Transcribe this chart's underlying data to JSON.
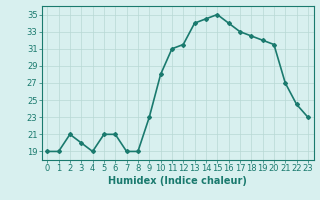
{
  "x": [
    0,
    1,
    2,
    3,
    4,
    5,
    6,
    7,
    8,
    9,
    10,
    11,
    12,
    13,
    14,
    15,
    16,
    17,
    18,
    19,
    20,
    21,
    22,
    23
  ],
  "y": [
    19,
    19,
    21,
    20,
    19,
    21,
    21,
    19,
    19,
    23,
    28,
    31,
    31.5,
    34,
    34.5,
    35,
    34,
    33,
    32.5,
    32,
    31.5,
    27,
    24.5,
    23
  ],
  "xlabel": "Humidex (Indice chaleur)",
  "ylabel": "",
  "xlim": [
    -0.5,
    23.5
  ],
  "ylim": [
    18,
    36
  ],
  "yticks": [
    19,
    21,
    23,
    25,
    27,
    29,
    31,
    33,
    35
  ],
  "xticks": [
    0,
    1,
    2,
    3,
    4,
    5,
    6,
    7,
    8,
    9,
    10,
    11,
    12,
    13,
    14,
    15,
    16,
    17,
    18,
    19,
    20,
    21,
    22,
    23
  ],
  "line_color": "#1a7a6e",
  "marker_color": "#1a7a6e",
  "bg_color": "#d8f0ef",
  "grid_color": "#b8d8d4",
  "axis_color": "#1a7a6e",
  "label_color": "#1a7a6e",
  "tick_color": "#1a7a6e",
  "font_size_label": 7,
  "font_size_tick": 6,
  "marker": "D",
  "marker_size": 2,
  "line_width": 1.2
}
